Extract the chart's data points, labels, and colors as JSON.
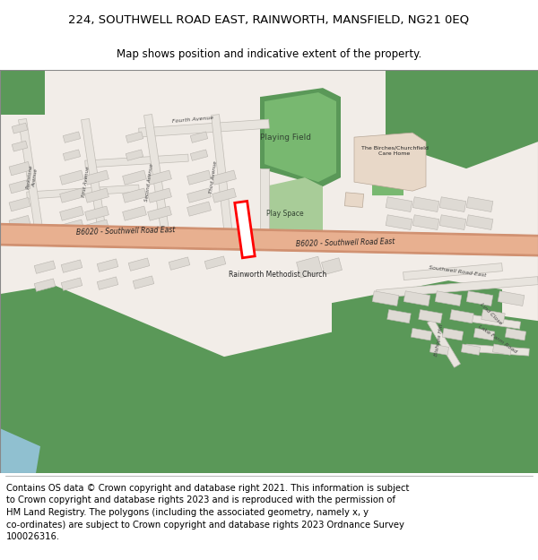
{
  "title_line1": "224, SOUTHWELL ROAD EAST, RAINWORTH, MANSFIELD, NG21 0EQ",
  "title_line2": "Map shows position and indicative extent of the property.",
  "copyright_text": "Contains OS data © Crown copyright and database right 2021. This information is subject\nto Crown copyright and database rights 2023 and is reproduced with the permission of\nHM Land Registry. The polygons (including the associated geometry, namely x, y\nco-ordinates) are subject to Crown copyright and database rights 2023 Ordnance Survey\n100026316.",
  "title_fontsize": 9.5,
  "subtitle_fontsize": 8.5,
  "copyright_fontsize": 7.2,
  "map_bg": "#f2ede8",
  "road_salmon": "#e8b090",
  "road_edge": "#d09070",
  "green_dark": "#5a9858",
  "green_mid": "#78b870",
  "green_light": "#a8cc98",
  "building_fill": "#dedad4",
  "building_edge": "#b8b4ae",
  "white": "#ffffff",
  "plot_color": "#ff0000",
  "text_dark": "#333333",
  "text_black": "#111111"
}
